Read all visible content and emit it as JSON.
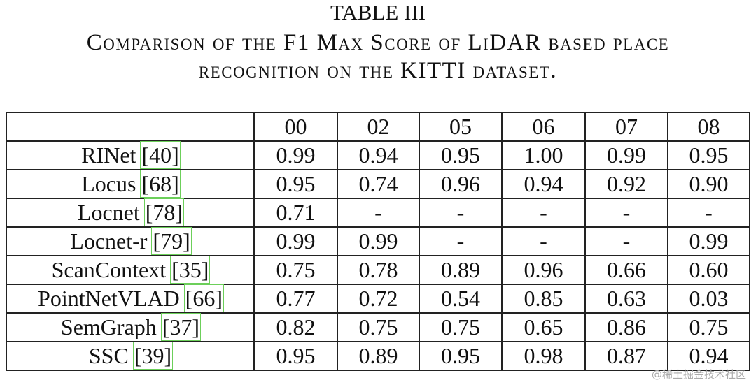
{
  "header": {
    "label": "TABLE III",
    "lines": [
      "Comparison of the F1 Max Score of LiDAR based place",
      "recognition on the KITTI dataset."
    ]
  },
  "table": {
    "columns": [
      "00",
      "02",
      "05",
      "06",
      "07",
      "08"
    ],
    "rows": [
      {
        "method": "RINet",
        "cite": "[40]",
        "values": [
          "0.99",
          "0.94",
          "0.95",
          "1.00",
          "0.99",
          "0.95"
        ]
      },
      {
        "method": "Locus",
        "cite": "[68]",
        "values": [
          "0.95",
          "0.74",
          "0.96",
          "0.94",
          "0.92",
          "0.90"
        ]
      },
      {
        "method": "Locnet",
        "cite": "[78]",
        "values": [
          "0.71",
          "-",
          "-",
          "-",
          "-",
          "-"
        ]
      },
      {
        "method": "Locnet-r",
        "cite": "[79]",
        "values": [
          "0.99",
          "0.99",
          "-",
          "-",
          "-",
          "0.99"
        ]
      },
      {
        "method": "ScanContext",
        "cite": "[35]",
        "values": [
          "0.75",
          "0.78",
          "0.89",
          "0.96",
          "0.66",
          "0.60"
        ]
      },
      {
        "method": "PointNetVLAD",
        "cite": "[66]",
        "values": [
          "0.77",
          "0.72",
          "0.54",
          "0.85",
          "0.63",
          "0.03"
        ]
      },
      {
        "method": "SemGraph",
        "cite": "[37]",
        "values": [
          "0.82",
          "0.75",
          "0.75",
          "0.65",
          "0.86",
          "0.75"
        ]
      },
      {
        "method": "SSC",
        "cite": "[39]",
        "values": [
          "0.95",
          "0.89",
          "0.95",
          "0.98",
          "0.87",
          "0.94"
        ]
      }
    ]
  },
  "watermark": "@稀土掘金技术社区"
}
